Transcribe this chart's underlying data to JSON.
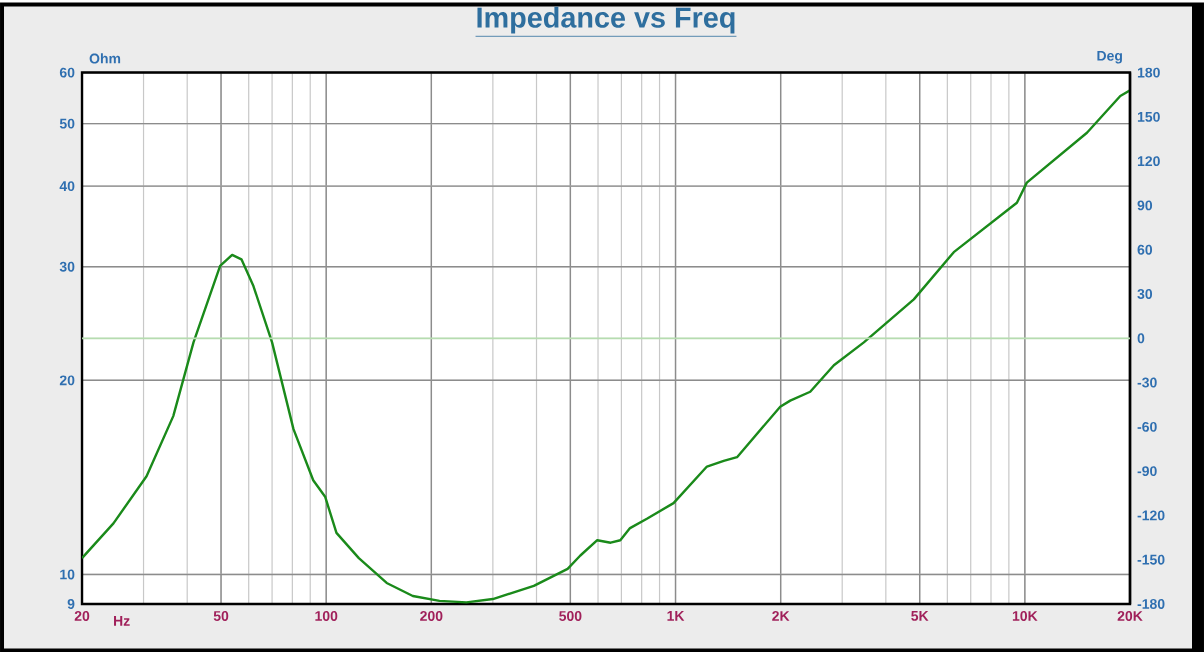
{
  "chart_data": {
    "type": "line",
    "title": "Impedance vs Freq",
    "xlabel": "Hz",
    "ylabel": "Ohm",
    "y2label": "Deg",
    "log": "xy",
    "grid": true,
    "x": [
      20,
      24.6,
      30.6,
      36.5,
      41.7,
      49.7,
      53.8,
      57.2,
      61.9,
      70,
      80.6,
      91.8,
      99.3,
      107,
      124,
      149,
      177,
      211,
      252,
      300,
      393,
      491,
      534,
      597,
      652,
      695,
      741,
      828,
      987,
      1230,
      1374,
      1500,
      1994,
      2130,
      2430,
      2840,
      3460,
      4810,
      6260,
      9490,
      10130,
      15060,
      18760,
      20000
    ],
    "series": [
      {
        "color": "#1a8a1a",
        "values": [
          10.6,
          12.0,
          14.2,
          17.6,
          22.9,
          30.1,
          31.3,
          30.8,
          28.0,
          22.9,
          16.8,
          14.0,
          13.2,
          11.6,
          10.6,
          9.7,
          9.26,
          9.1,
          9.05,
          9.16,
          9.6,
          10.2,
          10.7,
          11.3,
          11.2,
          11.3,
          11.8,
          12.2,
          12.9,
          14.7,
          15.0,
          15.2,
          18.2,
          18.6,
          19.2,
          21.1,
          22.9,
          26.7,
          31.6,
          37.7,
          40.5,
          48.4,
          55.2,
          56.3
        ]
      }
    ],
    "xlim": [
      20,
      20000
    ],
    "ylim": [
      9,
      60
    ],
    "xticks": [
      20,
      50,
      100,
      200,
      500,
      {
        "value": 1000,
        "label": "1K"
      },
      {
        "value": 2000,
        "label": "2K"
      },
      {
        "value": 5000,
        "label": "5K"
      },
      {
        "value": 10000,
        "label": "10K"
      },
      {
        "value": 20000,
        "label": "20K"
      }
    ],
    "yticks": [
      9,
      10,
      20,
      30,
      40,
      50,
      60
    ],
    "y2lim": [
      -180,
      180
    ],
    "y2ticks": [
      -180,
      -150,
      -120,
      -90,
      -60,
      -30,
      0,
      30,
      60,
      90,
      120,
      150,
      180
    ],
    "ref_lines": [
      {
        "axis": "y2",
        "value": 0,
        "color": "#b6dcb0"
      }
    ]
  }
}
